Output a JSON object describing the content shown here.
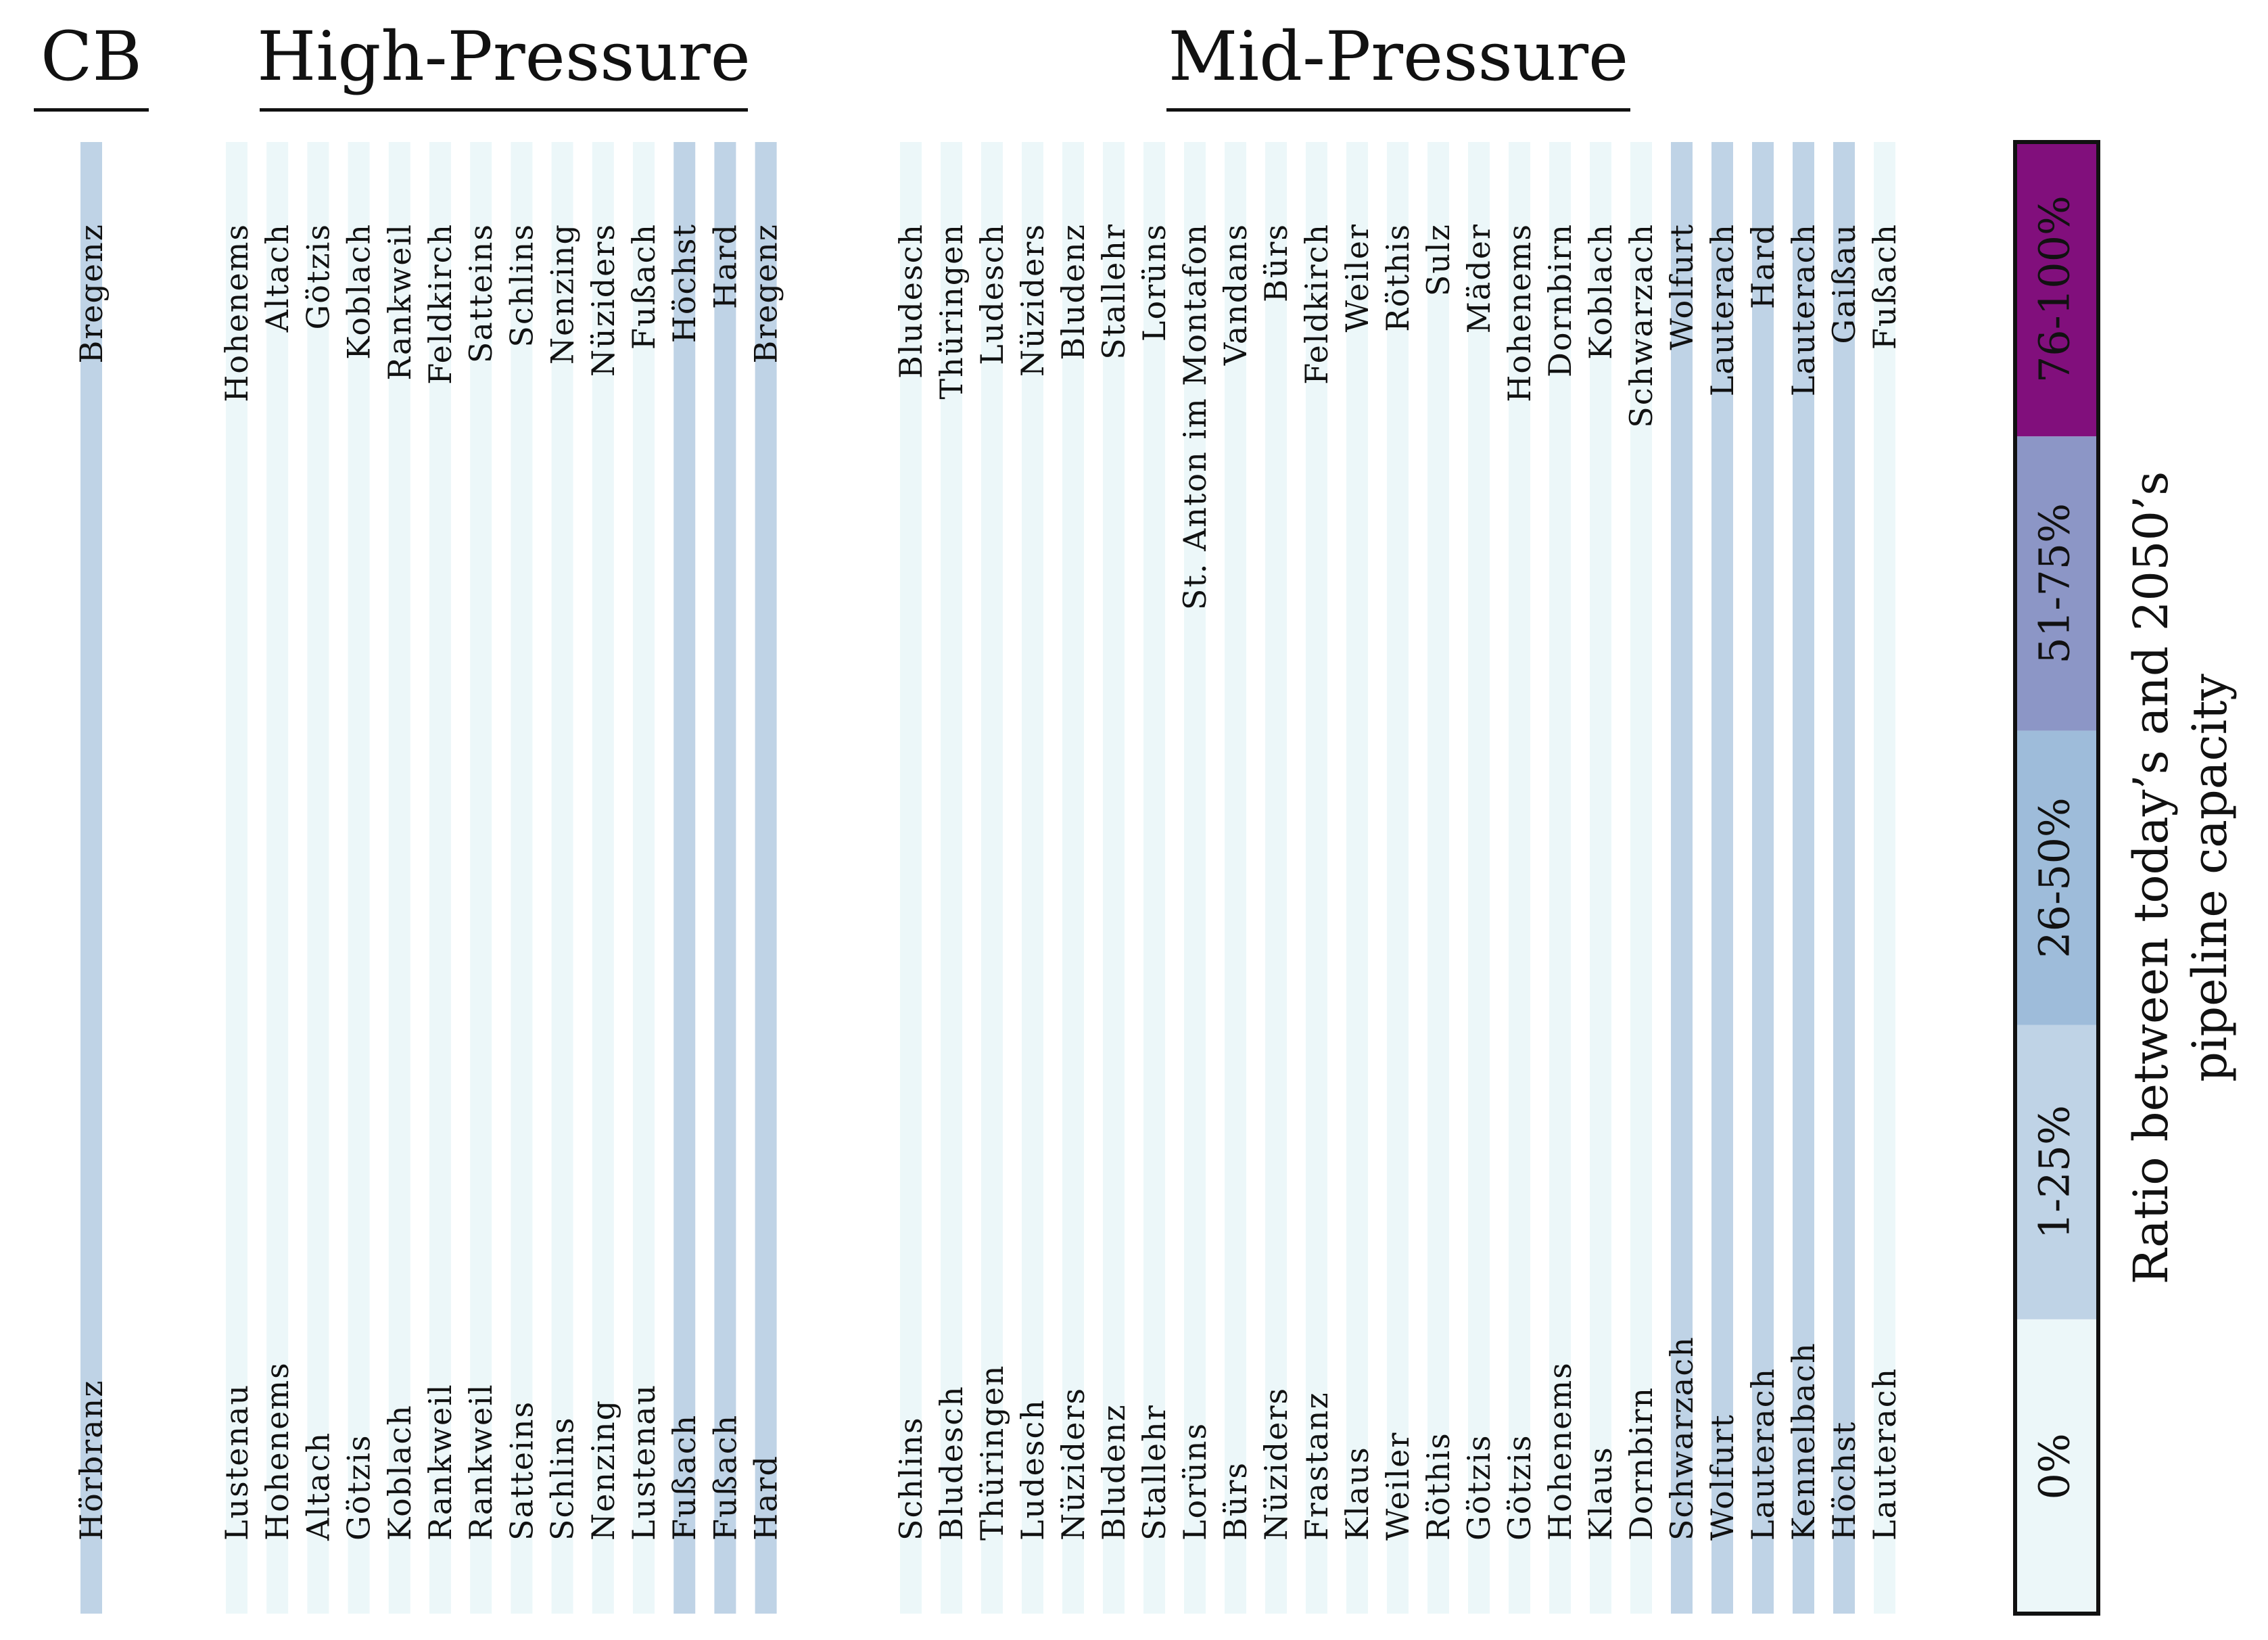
{
  "figure": {
    "legend_title_line1": "Ratio between today’s and 2050’s",
    "legend_title_line2": "pipeline capacity"
  },
  "colors": {
    "0%": "#ecf7f9",
    "1-25%": "#bfd3e6",
    "26-50%": "#9ebcda",
    "51-75%": "#8c96c6",
    "76-100%": "#810f7c"
  },
  "chart_data": {
    "type": "bar",
    "value_label": "Ratio between today’s and 2050’s pipeline capacity",
    "legend": {
      "placement": "right",
      "categories": [
        "0%",
        "1-25%",
        "26-50%",
        "51-75%",
        "76-100%"
      ]
    },
    "groups": [
      {
        "name": "CB",
        "pipelines": [
          {
            "from": "Hörbranz",
            "to": "Bregenz",
            "category": "1-25%"
          }
        ]
      },
      {
        "name": "High-Pressure",
        "pipelines": [
          {
            "from": "Lustenau",
            "to": "Hohenems",
            "category": "0%"
          },
          {
            "from": "Hohenems",
            "to": "Altach",
            "category": "0%"
          },
          {
            "from": "Altach",
            "to": "Götzis",
            "category": "0%"
          },
          {
            "from": "Götzis",
            "to": "Koblach",
            "category": "0%"
          },
          {
            "from": "Koblach",
            "to": "Rankweil",
            "category": "0%"
          },
          {
            "from": "Rankweil",
            "to": "Feldkirch",
            "category": "0%"
          },
          {
            "from": "Rankweil",
            "to": "Satteins",
            "category": "0%"
          },
          {
            "from": "Satteins",
            "to": "Schlins",
            "category": "0%"
          },
          {
            "from": "Schlins",
            "to": "Nenzing",
            "category": "0%"
          },
          {
            "from": "Nenzing",
            "to": "Nüziders",
            "category": "0%"
          },
          {
            "from": "Lustenau",
            "to": "Fußach",
            "category": "0%"
          },
          {
            "from": "Fußach",
            "to": "Höchst",
            "category": "1-25%"
          },
          {
            "from": "Fußach",
            "to": "Hard",
            "category": "1-25%"
          },
          {
            "from": "Hard",
            "to": "Bregenz",
            "category": "1-25%"
          }
        ]
      },
      {
        "name": "Mid-Pressure",
        "pipelines": [
          {
            "from": "Schlins",
            "to": "Bludesch",
            "category": "0%"
          },
          {
            "from": "Bludesch",
            "to": "Thüringen",
            "category": "0%"
          },
          {
            "from": "Thüringen",
            "to": "Ludesch",
            "category": "0%"
          },
          {
            "from": "Ludesch",
            "to": "Nüziders",
            "category": "0%"
          },
          {
            "from": "Nüziders",
            "to": "Bludenz",
            "category": "0%"
          },
          {
            "from": "Bludenz",
            "to": "Stallehr",
            "category": "0%"
          },
          {
            "from": "Stallehr",
            "to": "Lorüns",
            "category": "0%"
          },
          {
            "from": "Lorüns",
            "to": "St. Anton im Montafon",
            "category": "0%"
          },
          {
            "from": "Bürs",
            "to": "Vandans",
            "category": "0%"
          },
          {
            "from": "Nüziders",
            "to": "Bürs",
            "category": "0%"
          },
          {
            "from": "Frastanz",
            "to": "Feldkirch",
            "category": "0%"
          },
          {
            "from": "Klaus",
            "to": "Weiler",
            "category": "0%"
          },
          {
            "from": "Weiler",
            "to": "Röthis",
            "category": "0%"
          },
          {
            "from": "Röthis",
            "to": "Sulz",
            "category": "0%"
          },
          {
            "from": "Götzis",
            "to": "Mäder",
            "category": "0%"
          },
          {
            "from": "Götzis",
            "to": "Hohenems",
            "category": "0%"
          },
          {
            "from": "Hohenems",
            "to": "Dornbirn",
            "category": "0%"
          },
          {
            "from": "Klaus",
            "to": "Koblach",
            "category": "0%"
          },
          {
            "from": "Dornbirn",
            "to": "Schwarzach",
            "category": "0%"
          },
          {
            "from": "Schwarzach",
            "to": "Wolfurt",
            "category": "1-25%"
          },
          {
            "from": "Wolfurt",
            "to": "Lauterach",
            "category": "1-25%"
          },
          {
            "from": "Lauterach",
            "to": "Hard",
            "category": "1-25%"
          },
          {
            "from": "Kennelbach",
            "to": "Lauterach",
            "category": "1-25%"
          },
          {
            "from": "Höchst",
            "to": "Gaißau",
            "category": "1-25%"
          },
          {
            "from": "Lauterach",
            "to": "Fußach",
            "category": "0%"
          }
        ]
      }
    ]
  }
}
